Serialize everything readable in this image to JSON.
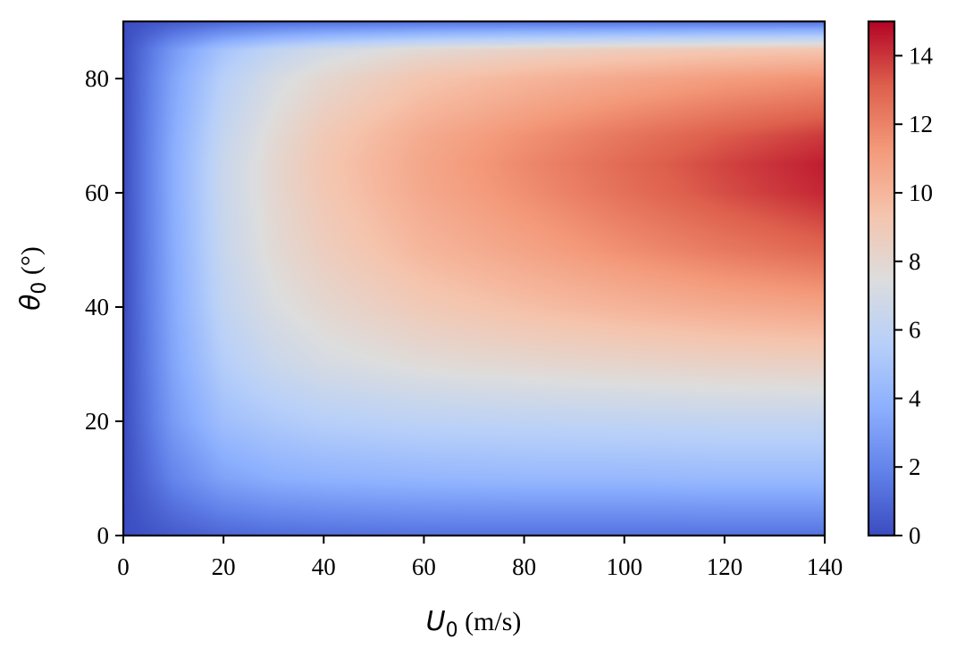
{
  "chart_data": {
    "type": "heatmap",
    "title": "",
    "xlabel": {
      "symbol": "U",
      "subscript": "0",
      "unit": " (m/s)"
    },
    "ylabel": {
      "symbol": "θ",
      "subscript": "0",
      "unit": " (°)"
    },
    "xlim": [
      0,
      140
    ],
    "ylim": [
      0,
      90
    ],
    "xticks": [
      0,
      20,
      40,
      60,
      80,
      100,
      120,
      140
    ],
    "yticks": [
      0,
      20,
      40,
      60,
      80
    ],
    "colorbar": {
      "colormap": "coolwarm",
      "range": [
        0,
        15
      ],
      "ticks": [
        0,
        2,
        4,
        6,
        8,
        10,
        12,
        14
      ]
    },
    "grid": false,
    "z_samples": {
      "x": [
        0,
        10,
        20,
        30,
        40,
        60,
        80,
        100,
        120,
        140
      ],
      "y": [
        0,
        10,
        20,
        30,
        40,
        50,
        60,
        65,
        70,
        80,
        85,
        90
      ],
      "z": [
        [
          0.0,
          0.5,
          0.9,
          1.1,
          1.2,
          1.3,
          1.3,
          1.3,
          1.3,
          1.3
        ],
        [
          0.0,
          2.0,
          3.2,
          3.7,
          3.9,
          4.1,
          4.2,
          4.2,
          4.3,
          4.3
        ],
        [
          0.0,
          2.9,
          4.6,
          5.2,
          5.6,
          5.9,
          6.0,
          6.1,
          6.2,
          6.2
        ],
        [
          0.0,
          3.3,
          5.5,
          6.5,
          7.1,
          7.7,
          8.0,
          8.2,
          8.4,
          8.5
        ],
        [
          0.0,
          3.5,
          6.1,
          7.3,
          8.0,
          9.0,
          9.6,
          10.1,
          10.5,
          10.8
        ],
        [
          0.0,
          3.6,
          6.4,
          7.8,
          8.7,
          10.0,
          10.8,
          11.6,
          12.3,
          12.9
        ],
        [
          0.0,
          3.7,
          6.5,
          8.0,
          9.1,
          10.6,
          11.6,
          12.6,
          13.5,
          14.3
        ],
        [
          0.0,
          3.7,
          6.5,
          8.0,
          9.2,
          10.7,
          11.8,
          12.8,
          13.7,
          14.5
        ],
        [
          0.0,
          3.6,
          6.3,
          7.8,
          9.0,
          10.5,
          11.5,
          12.4,
          13.2,
          13.9
        ],
        [
          0.0,
          3.3,
          5.7,
          7.1,
          8.0,
          9.3,
          10.0,
          10.6,
          11.1,
          11.5
        ],
        [
          0.0,
          2.8,
          4.9,
          6.1,
          6.9,
          7.9,
          8.4,
          8.8,
          9.1,
          9.3
        ],
        [
          0.0,
          0.5,
          0.8,
          1.0,
          1.1,
          1.2,
          1.2,
          1.2,
          1.2,
          1.2
        ]
      ]
    }
  }
}
